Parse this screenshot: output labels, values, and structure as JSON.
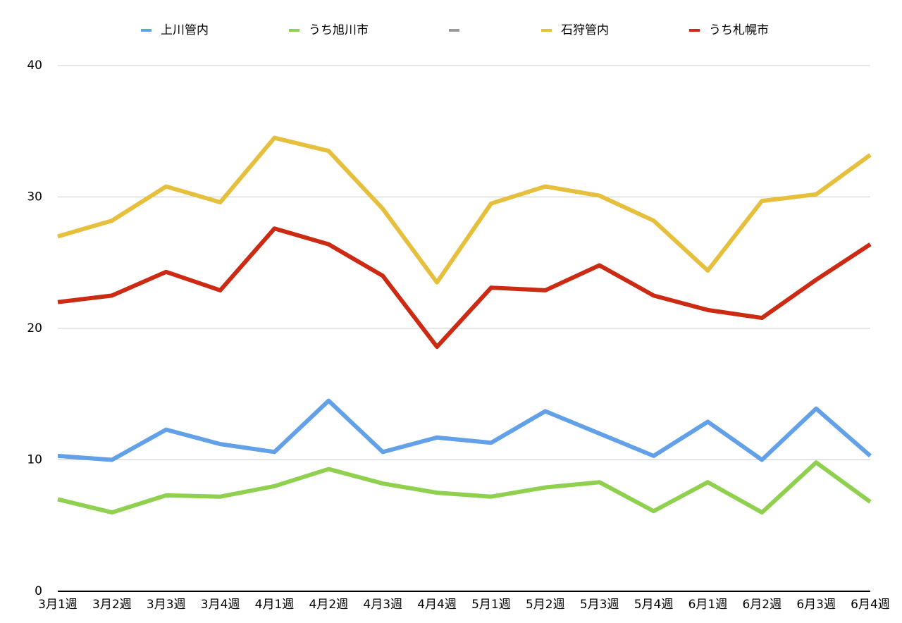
{
  "chart_data": {
    "type": "line",
    "categories": [
      "3月1週",
      "3月2週",
      "3月3週",
      "3月4週",
      "4月1週",
      "4月2週",
      "4月3週",
      "4月4週",
      "5月1週",
      "5月2週",
      "5月3週",
      "5月4週",
      "6月1週",
      "6月2週",
      "6月3週",
      "6月4週"
    ],
    "series": [
      {
        "name": "上川管内",
        "color": "#62a0e8",
        "values": [
          10.3,
          10.0,
          12.3,
          11.2,
          10.6,
          14.5,
          10.6,
          11.7,
          11.3,
          13.7,
          12.0,
          10.3,
          12.9,
          10.0,
          13.9,
          10.3
        ]
      },
      {
        "name": "うち旭川市",
        "color": "#8fd14f",
        "values": [
          7.0,
          6.0,
          7.3,
          7.2,
          8.0,
          9.3,
          8.2,
          7.5,
          7.2,
          7.9,
          8.3,
          6.1,
          8.3,
          6.0,
          9.8,
          6.8
        ]
      },
      {
        "name": "石狩管内",
        "color": "#e6bf3c",
        "values": [
          27.0,
          28.2,
          30.8,
          29.6,
          34.5,
          33.5,
          29.1,
          23.5,
          29.5,
          30.8,
          30.1,
          28.2,
          24.4,
          29.7,
          30.2,
          33.2
        ]
      },
      {
        "name": "うち札幌市",
        "color": "#cc2a12",
        "values": [
          22.0,
          22.5,
          24.3,
          22.9,
          27.6,
          26.4,
          24.0,
          18.6,
          23.1,
          22.9,
          24.8,
          22.5,
          21.4,
          20.8,
          23.7,
          26.4
        ]
      }
    ],
    "ylim": [
      0,
      40
    ],
    "yticks": [
      0,
      10,
      20,
      30,
      40
    ],
    "grid": true,
    "legend": "top"
  }
}
